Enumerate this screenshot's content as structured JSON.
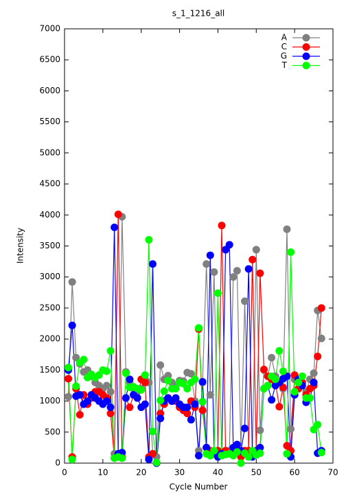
{
  "chart_data": {
    "type": "line",
    "title": "s_1_1216_all",
    "x_label": "Cycle Number",
    "y_label": "Intensity",
    "x": [
      1,
      2,
      3,
      4,
      5,
      6,
      7,
      8,
      9,
      10,
      11,
      12,
      13,
      14,
      15,
      16,
      17,
      18,
      19,
      20,
      21,
      22,
      23,
      24,
      25,
      26,
      27,
      28,
      29,
      30,
      31,
      32,
      33,
      34,
      35,
      36,
      37,
      38,
      39,
      40,
      41,
      42,
      43,
      44,
      45,
      46,
      47,
      48,
      49,
      50,
      51,
      52,
      53,
      54,
      55,
      56,
      57,
      58,
      59,
      60,
      61,
      62,
      63,
      64,
      65,
      66,
      67
    ],
    "series": [
      {
        "name": "A",
        "color": "#808080",
        "values": [
          1070,
          2920,
          1700,
          1600,
          1470,
          1500,
          1400,
          1300,
          1250,
          1200,
          1250,
          1150,
          150,
          100,
          3970,
          1470,
          1300,
          1200,
          1150,
          1200,
          1350,
          1300,
          150,
          100,
          1580,
          1350,
          1410,
          1300,
          1250,
          1330,
          1320,
          1460,
          1440,
          1000,
          200,
          1300,
          3210,
          1100,
          3080,
          200,
          150,
          200,
          200,
          3000,
          3100,
          200,
          2610,
          200,
          150,
          3440,
          530,
          1500,
          1400,
          1700,
          1400,
          1300,
          1200,
          3770,
          550,
          1350,
          1200,
          1300,
          1150,
          1350,
          1450,
          2460,
          2010
        ]
      },
      {
        "name": "C",
        "color": "#ff0000",
        "values": [
          1360,
          100,
          1200,
          780,
          1100,
          950,
          1050,
          1150,
          1150,
          1100,
          1050,
          800,
          80,
          4010,
          100,
          1050,
          900,
          1100,
          1050,
          1350,
          1300,
          100,
          150,
          0,
          800,
          950,
          1050,
          1000,
          1000,
          900,
          850,
          800,
          1000,
          900,
          2160,
          850,
          250,
          200,
          150,
          200,
          3830,
          200,
          150,
          200,
          200,
          100,
          200,
          200,
          3280,
          200,
          3060,
          1510,
          1400,
          1350,
          1300,
          910,
          1220,
          280,
          200,
          1420,
          1200,
          1300,
          1100,
          1200,
          1250,
          1720,
          2500
        ]
      },
      {
        "name": "G",
        "color": "#0000ff",
        "values": [
          1500,
          2220,
          1080,
          1100,
          950,
          1000,
          1100,
          1050,
          1000,
          950,
          1000,
          900,
          3800,
          150,
          170,
          1050,
          1350,
          1100,
          1050,
          900,
          950,
          60,
          3210,
          0,
          720,
          1000,
          1050,
          1000,
          1050,
          950,
          900,
          900,
          700,
          950,
          120,
          1310,
          250,
          3350,
          150,
          100,
          150,
          3440,
          3520,
          250,
          300,
          200,
          560,
          3130,
          100,
          200,
          250,
          1200,
          1250,
          1020,
          1250,
          1300,
          1360,
          1400,
          100,
          1100,
          1350,
          1250,
          980,
          1050,
          1300,
          160,
          200
        ]
      },
      {
        "name": "T",
        "color": "#00ff00",
        "values": [
          1540,
          60,
          1240,
          1620,
          1670,
          1380,
          1430,
          1380,
          1420,
          1500,
          1480,
          1810,
          80,
          100,
          80,
          1450,
          1220,
          1230,
          1200,
          1180,
          1420,
          3600,
          510,
          10,
          1010,
          1160,
          1330,
          1200,
          1200,
          1300,
          1280,
          1200,
          1300,
          1350,
          2180,
          990,
          150,
          120,
          200,
          2740,
          120,
          140,
          150,
          120,
          180,
          0,
          160,
          100,
          200,
          130,
          160,
          1200,
          1250,
          1400,
          1350,
          1810,
          1480,
          150,
          3400,
          1150,
          1300,
          1400,
          1050,
          1050,
          540,
          620,
          170
        ]
      }
    ],
    "xlim": [
      0,
      70
    ],
    "xticks": [
      0,
      10,
      20,
      30,
      40,
      50,
      60,
      70
    ],
    "ylim": [
      0,
      7000
    ],
    "yticks": [
      0,
      500,
      1000,
      1500,
      2000,
      2500,
      3000,
      3500,
      4000,
      4500,
      5000,
      5500,
      6000,
      6500,
      7000
    ],
    "grid": false,
    "legend": "top-right"
  }
}
